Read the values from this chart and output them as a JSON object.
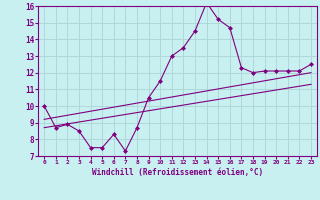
{
  "xlabel": "Windchill (Refroidissement éolien,°C)",
  "background_color": "#c8f0f0",
  "grid_color": "#b0d8d8",
  "line_color": "#800080",
  "xlim": [
    -0.5,
    23.5
  ],
  "ylim": [
    7,
    16
  ],
  "xticks": [
    0,
    1,
    2,
    3,
    4,
    5,
    6,
    7,
    8,
    9,
    10,
    11,
    12,
    13,
    14,
    15,
    16,
    17,
    18,
    19,
    20,
    21,
    22,
    23
  ],
  "yticks": [
    7,
    8,
    9,
    10,
    11,
    12,
    13,
    14,
    15,
    16
  ],
  "main_x": [
    0,
    1,
    2,
    3,
    4,
    5,
    6,
    7,
    8,
    9,
    10,
    11,
    12,
    13,
    14,
    15,
    16,
    17,
    18,
    19,
    20,
    21,
    22,
    23
  ],
  "main_y": [
    10.0,
    8.7,
    8.9,
    8.5,
    7.5,
    7.5,
    8.3,
    7.3,
    8.7,
    10.5,
    11.5,
    13.0,
    13.5,
    14.5,
    16.2,
    15.2,
    14.7,
    12.3,
    12.0,
    12.1,
    12.1,
    12.1,
    12.1,
    12.5
  ],
  "line2_x": [
    0,
    23
  ],
  "line2_y": [
    8.7,
    11.3
  ],
  "line3_x": [
    0,
    23
  ],
  "line3_y": [
    9.2,
    12.0
  ]
}
